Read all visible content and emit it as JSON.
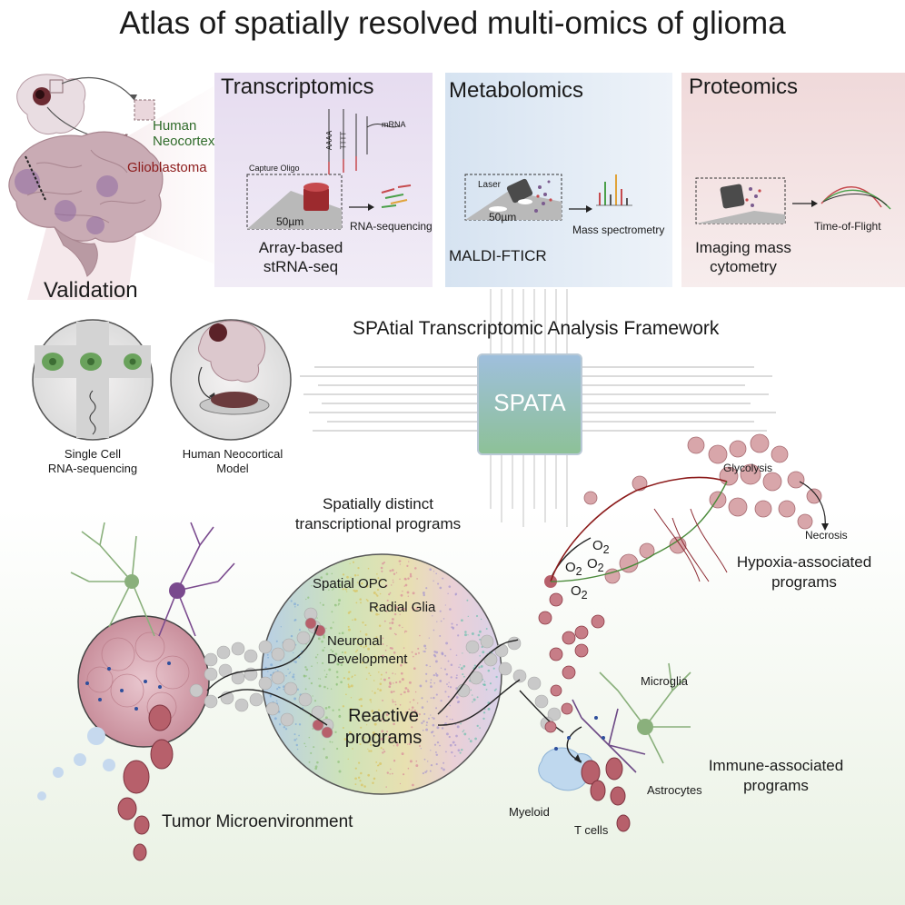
{
  "title": "Atlas of spatially resolved multi-omics of glioma",
  "sample": {
    "human_neocortex": "Human\nNeocortex",
    "glioblastoma": "Glioblastoma"
  },
  "transcriptomics": {
    "heading": "Transcriptomics",
    "capture_oligo": "Capture Oligo",
    "mrna": "mRNA",
    "poly_a": "AAAA",
    "poly_t": "TTTT",
    "scale": "50µm",
    "rna_seq": "RNA-sequencing",
    "method": "Array-based\nstRNA-seq"
  },
  "metabolomics": {
    "heading": "Metabolomics",
    "laser": "Laser",
    "scale": "50µm",
    "mass_spec": "Mass spectrometry",
    "method": "MALDI-FTICR"
  },
  "proteomics": {
    "heading": "Proteomics",
    "tof": "Time-of-Flight",
    "method": "Imaging mass\ncytometry"
  },
  "validation": {
    "heading": "Validation",
    "single_cell": "Single Cell\nRNA-sequencing",
    "neocortical_model": "Human Neocortical\nModel"
  },
  "framework": {
    "heading": "SPAtial Transcriptomic Analysis Framework",
    "chip_label": "SPATA"
  },
  "programs": {
    "heading": "Spatially distinct\ntranscriptional programs",
    "spatial_opc": "Spatial OPC",
    "radial_glia": "Radial Glia",
    "neuronal_dev": "Neuronal\nDevelopment",
    "reactive": "Reactive\nprograms"
  },
  "hypoxia": {
    "glycolysis": "Glycolysis",
    "necrosis": "Necrosis",
    "o2": "O",
    "o2_sub": "2",
    "label": "Hypoxia-associated\nprograms"
  },
  "immune": {
    "microglia": "Microglia",
    "astrocytes": "Astrocytes",
    "myeloid": "Myeloid",
    "t_cells": "T cells",
    "label": "Immune-associated\nprograms"
  },
  "tme": {
    "label": "Tumor Microenvironment"
  },
  "colors": {
    "transcriptomics_panel": "#e9e2f1",
    "metabolomics_panel": "#dfe8f3",
    "proteomics_panel": "#f2e0e0",
    "chip_top": "#a9c4de",
    "chip_bottom": "#8dbf93",
    "tumor_cell": "#b7606b",
    "brain": "#c7aab3"
  }
}
